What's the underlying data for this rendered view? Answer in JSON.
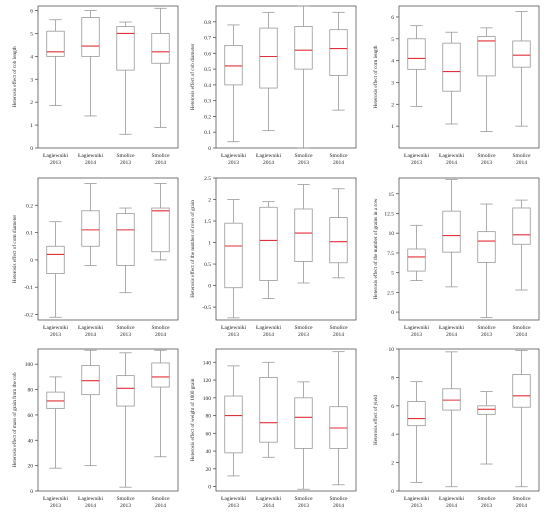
{
  "colors": {
    "axis": "#555555",
    "box": "#999999",
    "median": "#e0303a",
    "text": "#222222"
  },
  "chart_data": [
    {
      "type": "box",
      "ylabel": "Heterosis effect of cob length",
      "ylim": [
        0,
        6.2
      ],
      "yticks": [
        0,
        1,
        2,
        3,
        4,
        5,
        6
      ],
      "categories": [
        [
          "Łagiewniki",
          "2013"
        ],
        [
          "Łagiewniki",
          "2014"
        ],
        [
          "Smolice",
          "2013"
        ],
        [
          "Smolice",
          "2014"
        ]
      ],
      "boxes": [
        {
          "min": 1.85,
          "q1": 4.0,
          "median": 4.2,
          "q3": 5.1,
          "max": 5.6
        },
        {
          "min": 1.4,
          "q1": 4.0,
          "median": 4.45,
          "q3": 5.7,
          "max": 6.0
        },
        {
          "min": 0.6,
          "q1": 3.4,
          "median": 5.0,
          "q3": 5.3,
          "max": 5.5
        },
        {
          "min": 0.9,
          "q1": 3.7,
          "median": 4.2,
          "q3": 5.0,
          "max": 6.1
        }
      ]
    },
    {
      "type": "box",
      "ylabel": "Heterosis effect of cob diameter",
      "ylim": [
        0,
        0.9
      ],
      "yticks": [
        0,
        0.1,
        0.2,
        0.3,
        0.4,
        0.5,
        0.6,
        0.7,
        0.8
      ],
      "categories": [
        [
          "Łagiewniki",
          "2013"
        ],
        [
          "Łagiewniki",
          "2014"
        ],
        [
          "Smolice",
          "2013"
        ],
        [
          "Smolice",
          "2014"
        ]
      ],
      "boxes": [
        {
          "min": 0.04,
          "q1": 0.4,
          "median": 0.52,
          "q3": 0.65,
          "max": 0.78
        },
        {
          "min": 0.11,
          "q1": 0.38,
          "median": 0.58,
          "q3": 0.76,
          "max": 0.86
        },
        {
          "min": 0.0,
          "q1": 0.5,
          "median": 0.62,
          "q3": 0.77,
          "max": 0.9
        },
        {
          "min": 0.24,
          "q1": 0.46,
          "median": 0.63,
          "q3": 0.75,
          "max": 0.86
        }
      ]
    },
    {
      "type": "box",
      "ylabel": "Heterosis effect of corn length",
      "ylim": [
        0,
        6.5
      ],
      "yticks": [
        1,
        2,
        3,
        4,
        5,
        6
      ],
      "categories": [
        [
          "Łagiewniki",
          "2013"
        ],
        [
          "Łagiewniki",
          "2014"
        ],
        [
          "Smolice",
          "2013"
        ],
        [
          "Smolice",
          "2014"
        ]
      ],
      "boxes": [
        {
          "min": 1.9,
          "q1": 3.6,
          "median": 4.1,
          "q3": 5.0,
          "max": 5.6
        },
        {
          "min": 1.1,
          "q1": 2.6,
          "median": 3.5,
          "q3": 4.8,
          "max": 5.3
        },
        {
          "min": 0.75,
          "q1": 3.3,
          "median": 4.9,
          "q3": 5.1,
          "max": 5.5
        },
        {
          "min": 1.0,
          "q1": 3.7,
          "median": 4.25,
          "q3": 4.9,
          "max": 6.25
        }
      ]
    },
    {
      "type": "box",
      "ylabel": "Heterosis effect of corn diameter",
      "ylim": [
        -0.22,
        0.3
      ],
      "yticks": [
        -0.2,
        -0.1,
        0,
        0.1,
        0.2
      ],
      "categories": [
        [
          "Łagiewniki",
          "2013"
        ],
        [
          "Łagiewniki",
          "2014"
        ],
        [
          "Smolice",
          "2013"
        ],
        [
          "Smolice",
          "2014"
        ]
      ],
      "boxes": [
        {
          "min": -0.21,
          "q1": -0.05,
          "median": 0.02,
          "q3": 0.05,
          "max": 0.14
        },
        {
          "min": -0.02,
          "q1": 0.05,
          "median": 0.11,
          "q3": 0.18,
          "max": 0.28
        },
        {
          "min": -0.12,
          "q1": -0.02,
          "median": 0.11,
          "q3": 0.17,
          "max": 0.19
        },
        {
          "min": 0.0,
          "q1": 0.03,
          "median": 0.18,
          "q3": 0.19,
          "max": 0.28
        }
      ]
    },
    {
      "type": "box",
      "ylabel": "Heterosis effect of the number of rows of grain",
      "ylim": [
        -0.8,
        2.5
      ],
      "yticks": [
        -0.5,
        0.0,
        0.5,
        1.0,
        1.5,
        2.0,
        2.5
      ],
      "categories": [
        [
          "Łagiewniki",
          "2013"
        ],
        [
          "Łagiewniki",
          "2014"
        ],
        [
          "Smolice",
          "2013"
        ],
        [
          "Smolice",
          "2014"
        ]
      ],
      "boxes": [
        {
          "min": -0.75,
          "q1": -0.05,
          "median": 0.92,
          "q3": 1.45,
          "max": 2.0
        },
        {
          "min": -0.3,
          "q1": 0.12,
          "median": 1.05,
          "q3": 1.82,
          "max": 1.95
        },
        {
          "min": 0.06,
          "q1": 0.56,
          "median": 1.22,
          "q3": 1.78,
          "max": 2.35
        },
        {
          "min": 0.18,
          "q1": 0.53,
          "median": 1.02,
          "q3": 1.58,
          "max": 2.25
        }
      ]
    },
    {
      "type": "box",
      "ylabel": "Heterosis effect of the number of grains in a row",
      "ylim": [
        -1,
        17
      ],
      "yticks": [
        0.0,
        2.5,
        5.0,
        7.5,
        10.0,
        12.5,
        15.0
      ],
      "categories": [
        [
          "Łagiewniki",
          "2013"
        ],
        [
          "Łagiewniki",
          "2014"
        ],
        [
          "Smolice",
          "2013"
        ],
        [
          "Smolice",
          "2014"
        ]
      ],
      "boxes": [
        {
          "min": 4.0,
          "q1": 5.2,
          "median": 7.0,
          "q3": 8.0,
          "max": 11.0
        },
        {
          "min": 3.2,
          "q1": 7.6,
          "median": 9.7,
          "q3": 12.8,
          "max": 16.8
        },
        {
          "min": -0.7,
          "q1": 6.3,
          "median": 9.0,
          "q3": 10.2,
          "max": 13.7
        },
        {
          "min": 2.8,
          "q1": 8.6,
          "median": 9.8,
          "q3": 13.2,
          "max": 14.2
        }
      ]
    },
    {
      "type": "box",
      "ylabel": "Heterosis effect of mass of grain from the cob",
      "ylim": [
        0,
        112
      ],
      "yticks": [
        0,
        20,
        40,
        60,
        80,
        100
      ],
      "categories": [
        [
          "Łagiewniki",
          "2013"
        ],
        [
          "Łagiewniki",
          "2014"
        ],
        [
          "Smolice",
          "2013"
        ],
        [
          "Smolice",
          "2014"
        ]
      ],
      "boxes": [
        {
          "min": 18,
          "q1": 65,
          "median": 71,
          "q3": 78,
          "max": 90
        },
        {
          "min": 20,
          "q1": 76,
          "median": 87,
          "q3": 99,
          "max": 111
        },
        {
          "min": 3,
          "q1": 67,
          "median": 81,
          "q3": 91,
          "max": 109
        },
        {
          "min": 27,
          "q1": 82,
          "median": 90,
          "q3": 101,
          "max": 111
        }
      ]
    },
    {
      "type": "box",
      "ylabel": "Heterosis effect of weight of 1000 grain",
      "ylim": [
        -5,
        155
      ],
      "yticks": [
        0,
        20,
        40,
        60,
        80,
        100,
        120,
        140
      ],
      "categories": [
        [
          "Łagiewniki",
          "2013"
        ],
        [
          "Łagiewniki",
          "2014"
        ],
        [
          "Smolice",
          "2013"
        ],
        [
          "Smolice",
          "2014"
        ]
      ],
      "boxes": [
        {
          "min": 12,
          "q1": 38,
          "median": 80,
          "q3": 102,
          "max": 136
        },
        {
          "min": 33,
          "q1": 50,
          "median": 72,
          "q3": 123,
          "max": 140
        },
        {
          "min": -3,
          "q1": 43,
          "median": 78,
          "q3": 100,
          "max": 118
        },
        {
          "min": 2,
          "q1": 43,
          "median": 66,
          "q3": 90,
          "max": 152
        }
      ]
    },
    {
      "type": "box",
      "ylabel": "Heterosis effect of yield",
      "ylim": [
        0,
        10
      ],
      "yticks": [
        0,
        2,
        4,
        6,
        8,
        10
      ],
      "categories": [
        [
          "Łagiewniki",
          "2013"
        ],
        [
          "Łagiewniki",
          "2014"
        ],
        [
          "Smolice",
          "2013"
        ],
        [
          "Smolice",
          "2014"
        ]
      ],
      "boxes": [
        {
          "min": 0.6,
          "q1": 4.6,
          "median": 5.1,
          "q3": 6.3,
          "max": 7.7
        },
        {
          "min": 0.3,
          "q1": 5.7,
          "median": 6.4,
          "q3": 7.2,
          "max": 9.8
        },
        {
          "min": 1.9,
          "q1": 5.4,
          "median": 5.75,
          "q3": 6.0,
          "max": 7.0
        },
        {
          "min": 0.3,
          "q1": 5.9,
          "median": 6.7,
          "q3": 8.2,
          "max": 9.9
        }
      ]
    }
  ]
}
